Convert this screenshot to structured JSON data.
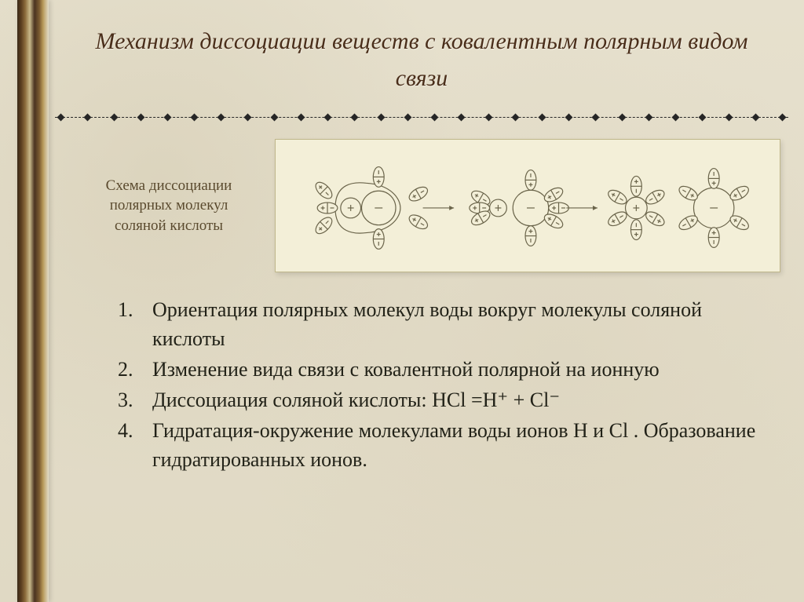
{
  "title": "Механизм диссоциации веществ с ковалентным полярным видом связи",
  "schema": {
    "label": "Схема диссоциации полярных молекул соляной кислоты",
    "background_color": "#f3efd8",
    "stroke_color": "#6a644a",
    "stages": [
      {
        "cation_r": 14,
        "anion_r": 24,
        "gap": -6,
        "dipoles": 7
      },
      {
        "cation_r": 12,
        "anion_r": 24,
        "gap": 8,
        "dipoles_cation": 3,
        "dipoles_anion": 5
      },
      {
        "cation_r": 14,
        "anion_r": 26,
        "gap": 38,
        "dipoles_cation": 6,
        "dipoles_anion": 6
      }
    ]
  },
  "list": [
    {
      "n": "1.",
      "text": "Ориентация полярных молекул воды вокруг молекулы соляной кислоты"
    },
    {
      "n": "2.",
      "text": "Изменение вида связи с ковалентной полярной на ионную"
    },
    {
      "n": "3.",
      "text": "Диссоциация соляной кислоты: HCl =H⁺ + Cl⁻"
    },
    {
      "n": "4.",
      "text": " Гидратация-окружение молекулами воды ионов H и  Cl . Образование гидратированных ионов."
    }
  ],
  "style": {
    "title_color": "#4a2e1a",
    "title_fontsize": 30,
    "label_color": "#5a4a2e",
    "label_fontsize": 19,
    "list_color": "#222218",
    "list_fontsize": 26,
    "background": "#e2dcc8",
    "divider_color": "#262626",
    "ribbon_colors": [
      "#3a2a18",
      "#5a3d1f",
      "#8a6a3a",
      "#c9b98a",
      "#4a3320"
    ]
  }
}
